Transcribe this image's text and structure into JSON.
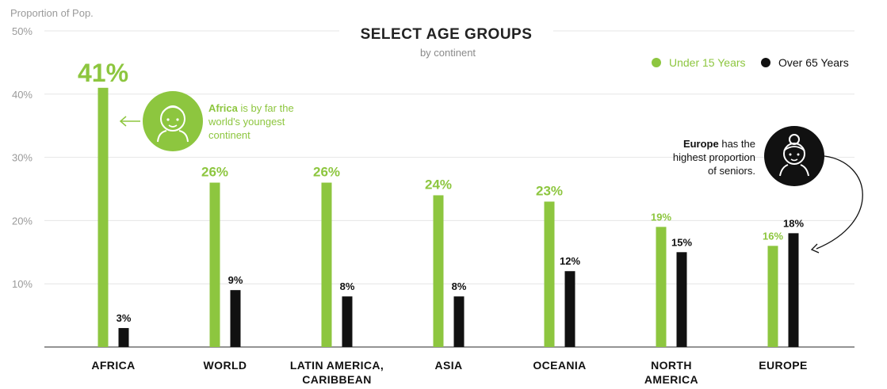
{
  "chart_data": {
    "type": "bar",
    "title": "SELECT AGE GROUPS",
    "subtitle": "by continent",
    "ylabel": "Proportion of Pop.",
    "ylim": [
      0,
      50
    ],
    "yticks": [
      "10%",
      "20%",
      "30%",
      "40%",
      "50%"
    ],
    "categories": [
      [
        "AFRICA"
      ],
      [
        "WORLD"
      ],
      [
        "LATIN AMERICA,",
        "CARIBBEAN"
      ],
      [
        "ASIA"
      ],
      [
        "OCEANIA"
      ],
      [
        "NORTH",
        "AMERICA"
      ],
      [
        "EUROPE"
      ]
    ],
    "series": [
      {
        "name": "Under 15 Years",
        "color": "#8dc63f",
        "values": [
          41,
          26,
          26,
          24,
          23,
          19,
          16
        ],
        "labels": [
          "41%",
          "26%",
          "26%",
          "24%",
          "23%",
          "19%",
          "16%"
        ]
      },
      {
        "name": "Over 65 Years",
        "color": "#111111",
        "values": [
          3,
          9,
          8,
          8,
          12,
          15,
          18
        ],
        "labels": [
          "3%",
          "9%",
          "8%",
          "8%",
          "12%",
          "15%",
          "18%"
        ]
      }
    ],
    "legend_position": "top-right",
    "grid": true,
    "annotations": [
      {
        "icon": "baby-face-icon",
        "bold": "Africa",
        "lines": [
          "is by far the",
          "world's youngest",
          "continent"
        ],
        "color": "#8dc63f"
      },
      {
        "icon": "grandmother-face-icon",
        "bold": "Europe",
        "lines": [
          "has the",
          "highest proportion",
          "of seniors."
        ],
        "color": "#111111"
      }
    ]
  }
}
